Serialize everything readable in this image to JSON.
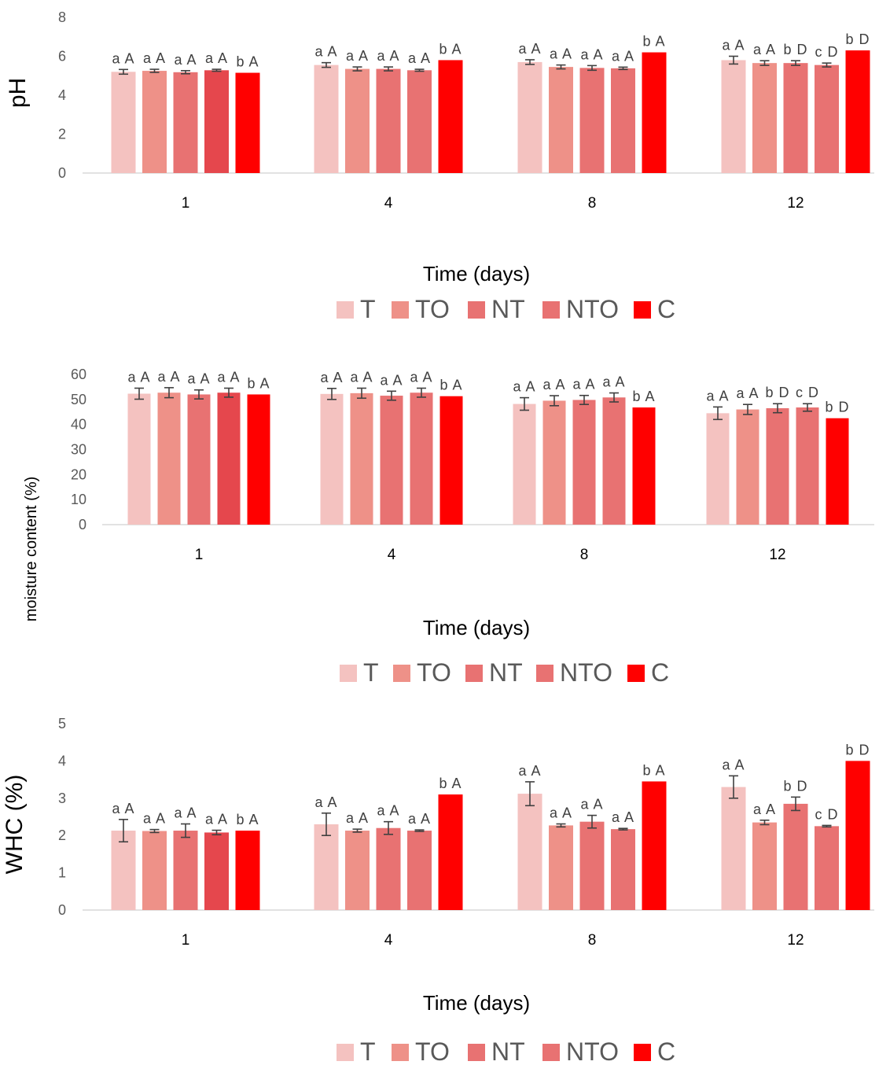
{
  "legend_items": [
    {
      "label": "T",
      "color": "#F4C2C0"
    },
    {
      "label": "TO",
      "color": "#EE9188"
    },
    {
      "label": "NT",
      "color": "#E87272"
    },
    {
      "label": "NTO",
      "color": "#E87272"
    },
    {
      "label": "C",
      "color": "#FF0000"
    }
  ],
  "chart_data": [
    {
      "type": "bar",
      "ylabel": "pH",
      "xlabel": "Time (days)",
      "ylim": [
        0,
        8
      ],
      "yticks": [
        "0",
        "2",
        "4",
        "6",
        "8"
      ],
      "categories": [
        "1",
        "4",
        "8",
        "12"
      ],
      "gridlines": false,
      "legend_position": "bottom",
      "series": [
        {
          "name": "T",
          "color": "#F4C2C0",
          "values": [
            5.2,
            5.55,
            5.7,
            5.8
          ],
          "errors": [
            0.12,
            0.12,
            0.12,
            0.2
          ],
          "labels": [
            "a A",
            "a A",
            "a A",
            "a A"
          ]
        },
        {
          "name": "TO",
          "color": "#EE9188",
          "values": [
            5.25,
            5.35,
            5.45,
            5.65
          ],
          "errors": [
            0.08,
            0.1,
            0.1,
            0.12
          ],
          "labels": [
            "a A",
            "a A",
            "a A",
            "a A"
          ]
        },
        {
          "name": "NT",
          "color": "#E87272",
          "values": [
            5.18,
            5.35,
            5.4,
            5.65
          ],
          "errors": [
            0.08,
            0.1,
            0.12,
            0.12
          ],
          "labels": [
            "a A",
            "a A",
            "a A",
            "b D"
          ]
        },
        {
          "name": "NTO",
          "color": "#E87272",
          "bar_colors": [
            "#E5474D",
            "#E87272",
            "#E87272",
            "#E87272"
          ],
          "values": [
            5.28,
            5.28,
            5.38,
            5.55
          ],
          "errors": [
            0.05,
            0.05,
            0.06,
            0.1
          ],
          "labels": [
            "a A",
            "a A",
            "a A",
            "c D"
          ]
        },
        {
          "name": "C",
          "color": "#FF0000",
          "values": [
            5.15,
            5.8,
            6.2,
            6.3
          ],
          "errors": [
            0,
            0,
            0,
            0
          ],
          "labels": [
            "b A",
            "b A",
            "b A",
            "b D"
          ]
        }
      ]
    },
    {
      "type": "bar",
      "ylabel": "moisture content (%)",
      "xlabel": "Time (days)",
      "ylim": [
        0,
        60
      ],
      "yticks": [
        "0",
        "10",
        "20",
        "30",
        "40",
        "50",
        "60"
      ],
      "categories": [
        "1",
        "4",
        "8",
        "12"
      ],
      "gridlines": false,
      "legend_position": "bottom",
      "series": [
        {
          "name": "T",
          "color": "#F4C2C0",
          "values": [
            52.3,
            52.2,
            48.2,
            44.5
          ],
          "errors": [
            2.2,
            2.2,
            2.5,
            2.5
          ],
          "labels": [
            "a A",
            "a A",
            "a A",
            "a A"
          ]
        },
        {
          "name": "TO",
          "color": "#EE9188",
          "values": [
            52.7,
            52.5,
            49.5,
            46.0
          ],
          "errors": [
            2.0,
            2.0,
            2.0,
            2.0
          ],
          "labels": [
            "a A",
            "a A",
            "a A",
            "a A"
          ]
        },
        {
          "name": "NT",
          "color": "#E87272",
          "values": [
            52.0,
            51.5,
            49.8,
            46.5
          ],
          "errors": [
            1.8,
            1.8,
            1.8,
            1.8
          ],
          "labels": [
            "a A",
            "a A",
            "a A",
            "b D"
          ]
        },
        {
          "name": "NTO",
          "color": "#E87272",
          "bar_colors": [
            "#E5474D",
            "#E87272",
            "#E87272",
            "#E87272"
          ],
          "values": [
            52.7,
            52.7,
            50.8,
            46.8
          ],
          "errors": [
            1.8,
            1.8,
            1.8,
            1.5
          ],
          "labels": [
            "a A",
            "a A",
            "a A",
            "c D"
          ]
        },
        {
          "name": "C",
          "color": "#FF0000",
          "values": [
            52.0,
            51.3,
            46.8,
            42.5
          ],
          "errors": [
            0,
            0,
            0,
            0
          ],
          "labels": [
            "b A",
            "b A",
            "b A",
            "b D"
          ]
        }
      ]
    },
    {
      "type": "bar",
      "ylabel": "WHC (%)",
      "xlabel": "Time (days)",
      "ylim": [
        0,
        5
      ],
      "yticks": [
        "0",
        "1",
        "2",
        "3",
        "4",
        "5"
      ],
      "categories": [
        "1",
        "4",
        "8",
        "12"
      ],
      "gridlines": false,
      "legend_position": "bottom",
      "series": [
        {
          "name": "T",
          "color": "#F4C2C0",
          "values": [
            2.13,
            2.3,
            3.12,
            3.3
          ],
          "errors": [
            0.3,
            0.3,
            0.32,
            0.3
          ],
          "labels": [
            "a A",
            "a A",
            "a A",
            "a A"
          ]
        },
        {
          "name": "TO",
          "color": "#EE9188",
          "values": [
            2.12,
            2.13,
            2.27,
            2.35
          ],
          "errors": [
            0.04,
            0.04,
            0.04,
            0.06
          ],
          "labels": [
            "a A",
            "a A",
            "a A",
            "a A"
          ]
        },
        {
          "name": "NT",
          "color": "#E87272",
          "values": [
            2.13,
            2.2,
            2.37,
            2.85
          ],
          "errors": [
            0.18,
            0.17,
            0.17,
            0.18
          ],
          "labels": [
            "a A",
            "a A",
            "a A",
            "b D"
          ]
        },
        {
          "name": "NTO",
          "color": "#E87272",
          "bar_colors": [
            "#E5474D",
            "#E87272",
            "#E87272",
            "#E87272"
          ],
          "values": [
            2.08,
            2.13,
            2.17,
            2.25
          ],
          "errors": [
            0.06,
            0.02,
            0.02,
            0.02
          ],
          "labels": [
            "a A",
            "a A",
            "a A",
            "c D"
          ]
        },
        {
          "name": "C",
          "color": "#FF0000",
          "values": [
            2.13,
            3.1,
            3.45,
            4.0
          ],
          "errors": [
            0,
            0,
            0,
            0
          ],
          "labels": [
            "b A",
            "b A",
            "b A",
            "b D"
          ]
        }
      ]
    }
  ]
}
